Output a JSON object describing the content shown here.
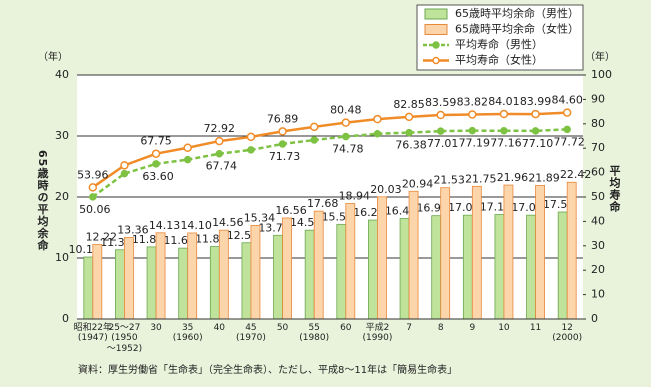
{
  "chart_data": {
    "type": "bar",
    "legend": "upper right",
    "grid": true,
    "ylabel": "65歳時の平均余命",
    "y2label": "平均寿命",
    "yunit": "（年）",
    "y2unit": "（年）",
    "source": "資料：厚生労働省「生命表」（完全生命表）、ただし、平成8〜11年は「簡易生命表」",
    "categories": [
      "昭和22年\n(1947)",
      "25〜27\n(1950\n〜1952)",
      "30",
      "35\n(1960)",
      "40",
      "45\n(1970)",
      "50",
      "55\n(1980)",
      "60",
      "平成2\n(1990)",
      "7",
      "8",
      "9",
      "10",
      "11",
      "12\n(2000)"
    ],
    "ylim": [
      0,
      40
    ],
    "yticks": [
      0,
      10,
      20,
      30,
      40
    ],
    "y2lim": [
      0,
      100
    ],
    "y2ticks": [
      0,
      10,
      20,
      30,
      40,
      50,
      60,
      70,
      80,
      90,
      100
    ],
    "series": [
      {
        "name": "65歳時平均余命（男性）",
        "type": "bar",
        "color": "#bfe39a",
        "stroke": "#6aa84f",
        "values": [
          10.16,
          11.35,
          11.82,
          11.62,
          11.88,
          12.5,
          13.72,
          14.56,
          15.52,
          16.22,
          16.48,
          16.94,
          17.02,
          17.13,
          17.02,
          17.54
        ],
        "value_labels": [
          "10.16",
          "11.35",
          "11.82",
          "11.62",
          "11.88",
          "12.50",
          "13.72",
          "14.56",
          "15.52",
          "16.22",
          "16.48",
          "16.94",
          "17.02",
          "17.13",
          "17.02",
          "17.54"
        ]
      },
      {
        "name": "65歳時平均余命（女性）",
        "type": "bar",
        "color": "#fdd5ab",
        "stroke": "#e8883a",
        "values": [
          12.22,
          13.36,
          14.13,
          14.1,
          14.56,
          15.34,
          16.56,
          17.68,
          18.94,
          20.03,
          20.94,
          21.53,
          21.75,
          21.96,
          21.89,
          22.42
        ],
        "value_labels": [
          "12.22",
          "13.36",
          "14.13",
          "14.10",
          "14.56",
          "15.34",
          "16.56",
          "17.68",
          "18.94",
          "20.03",
          "20.94",
          "21.53",
          "21.75",
          "21.96",
          "21.89",
          "22.42"
        ]
      },
      {
        "name": "平均寿命（男性）",
        "type": "line",
        "axis": "y2",
        "color": "#7dc242",
        "dashed": true,
        "values": [
          50.06,
          59.57,
          63.6,
          65.32,
          67.74,
          69.31,
          71.73,
          73.35,
          74.78,
          75.92,
          76.38,
          77.01,
          77.19,
          77.16,
          77.1,
          77.72
        ],
        "value_labels": [
          "50.06",
          null,
          "63.60",
          null,
          "67.74",
          null,
          "71.73",
          null,
          "74.78",
          null,
          "76.38",
          "77.01",
          "77.19",
          "77.16",
          "77.10",
          "77.72"
        ]
      },
      {
        "name": "平均寿命（女性）",
        "type": "line",
        "axis": "y2",
        "color": "#f08c28",
        "dashed": false,
        "values": [
          53.96,
          62.97,
          67.75,
          70.19,
          72.92,
          74.66,
          76.89,
          78.76,
          80.48,
          81.9,
          82.85,
          83.59,
          83.82,
          84.01,
          83.99,
          84.6
        ],
        "value_labels": [
          "53.96",
          null,
          "67.75",
          null,
          "72.92",
          null,
          "76.89",
          null,
          "80.48",
          null,
          "82.85",
          "83.59",
          "83.82",
          "84.01",
          "83.99",
          "84.60"
        ]
      }
    ]
  }
}
